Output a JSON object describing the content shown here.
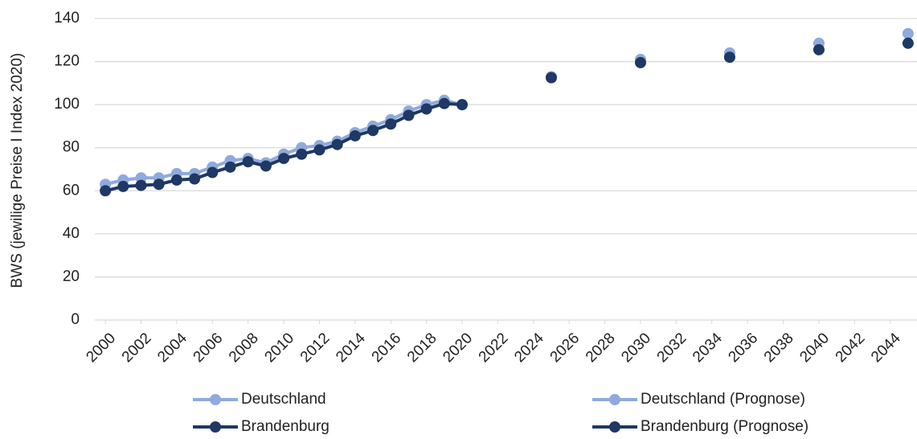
{
  "chart_data": {
    "type": "line",
    "y_label": "BWS (jewilige Preise I Index 2020)",
    "xlim": [
      1999.5,
      2045.5
    ],
    "xticks": [
      2000,
      2002,
      2004,
      2006,
      2008,
      2010,
      2012,
      2014,
      2016,
      2018,
      2020,
      2022,
      2024,
      2026,
      2028,
      2030,
      2032,
      2034,
      2036,
      2038,
      2040,
      2042,
      2044
    ],
    "ylim": [
      0,
      140
    ],
    "yticks": [
      0,
      20,
      40,
      60,
      80,
      100,
      120,
      140
    ],
    "grid": true,
    "legend": "bottom",
    "series": [
      {
        "name": "Deutschland",
        "color": "#8faadc",
        "line": true,
        "x": [
          2000,
          2001,
          2002,
          2003,
          2004,
          2005,
          2006,
          2007,
          2008,
          2009,
          2010,
          2011,
          2012,
          2013,
          2014,
          2015,
          2016,
          2017,
          2018,
          2019,
          2020
        ],
        "values": [
          63,
          65,
          66,
          66,
          68,
          68,
          71,
          74,
          75,
          73,
          77,
          80,
          81,
          83,
          87,
          90,
          93,
          97,
          100,
          102,
          100
        ]
      },
      {
        "name": "Brandenburg",
        "color": "#1f3864",
        "line": true,
        "x": [
          2000,
          2001,
          2002,
          2003,
          2004,
          2005,
          2006,
          2007,
          2008,
          2009,
          2010,
          2011,
          2012,
          2013,
          2014,
          2015,
          2016,
          2017,
          2018,
          2019,
          2020
        ],
        "values": [
          60,
          62,
          62.5,
          63,
          65,
          65.5,
          68.5,
          71,
          73.5,
          71.5,
          75,
          77,
          79,
          81.5,
          85.5,
          88,
          91,
          95,
          98,
          100.5,
          100
        ]
      },
      {
        "name": "Deutschland (Prognose)",
        "color": "#8faadc",
        "line": false,
        "x": [
          2025,
          2030,
          2035,
          2040,
          2045
        ],
        "values": [
          113,
          121,
          124,
          128.5,
          133
        ]
      },
      {
        "name": "Brandenburg (Prognose)",
        "color": "#1f3864",
        "line": false,
        "x": [
          2025,
          2030,
          2035,
          2040,
          2045
        ],
        "values": [
          112.5,
          119.5,
          122,
          125.5,
          128.5
        ]
      }
    ]
  }
}
